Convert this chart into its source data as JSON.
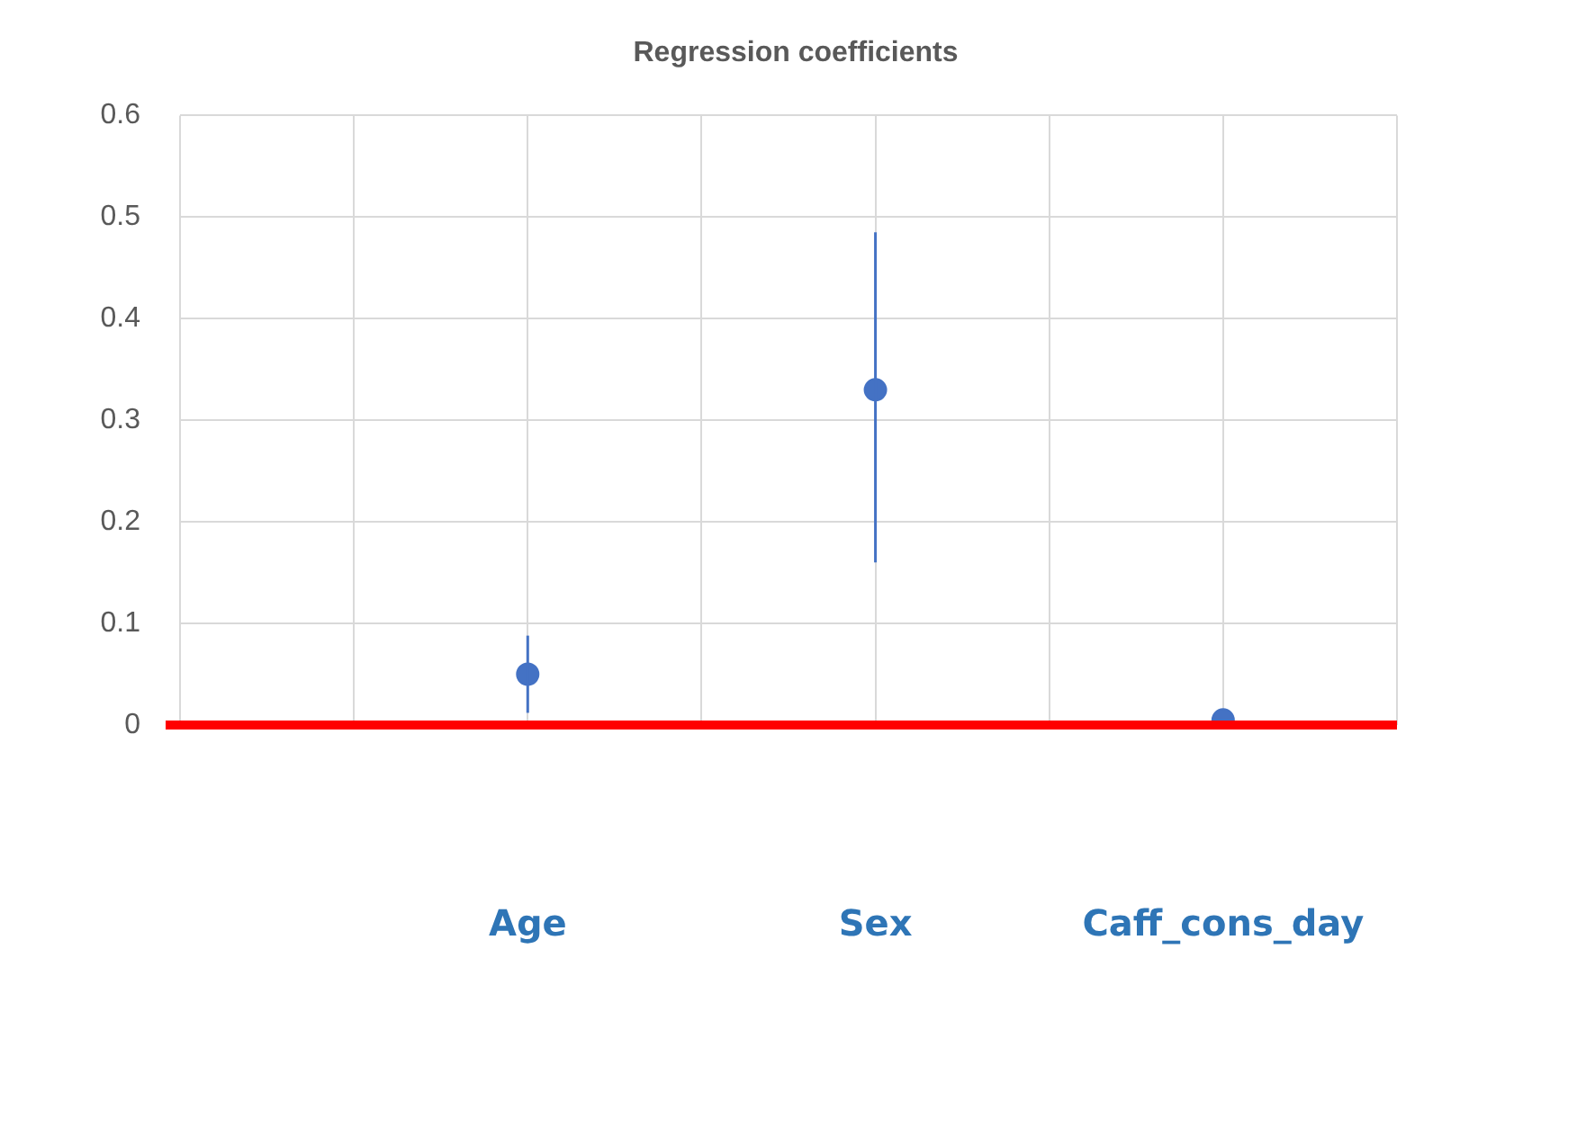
{
  "chart_data": {
    "type": "scatter",
    "title": "Regression coefficients",
    "categories": [
      null,
      null,
      "Age",
      null,
      "Sex",
      null,
      "Caff_cons_day",
      null
    ],
    "values": [
      null,
      null,
      0.05,
      null,
      0.33,
      null,
      0.005,
      null
    ],
    "errors": [
      null,
      null,
      [
        0.012,
        0.088
      ],
      null,
      [
        0.16,
        0.485
      ],
      null,
      null,
      null
    ],
    "color": "#4472c4",
    "marker": "circle",
    "ylim": [
      0,
      0.6
    ],
    "yticks": [
      0,
      0.1,
      0.2,
      0.3,
      0.4,
      0.5,
      0.6
    ],
    "grid": true,
    "ref_lines": [
      {
        "axis": "y",
        "value": 0,
        "color": "#ff0000"
      }
    ]
  }
}
